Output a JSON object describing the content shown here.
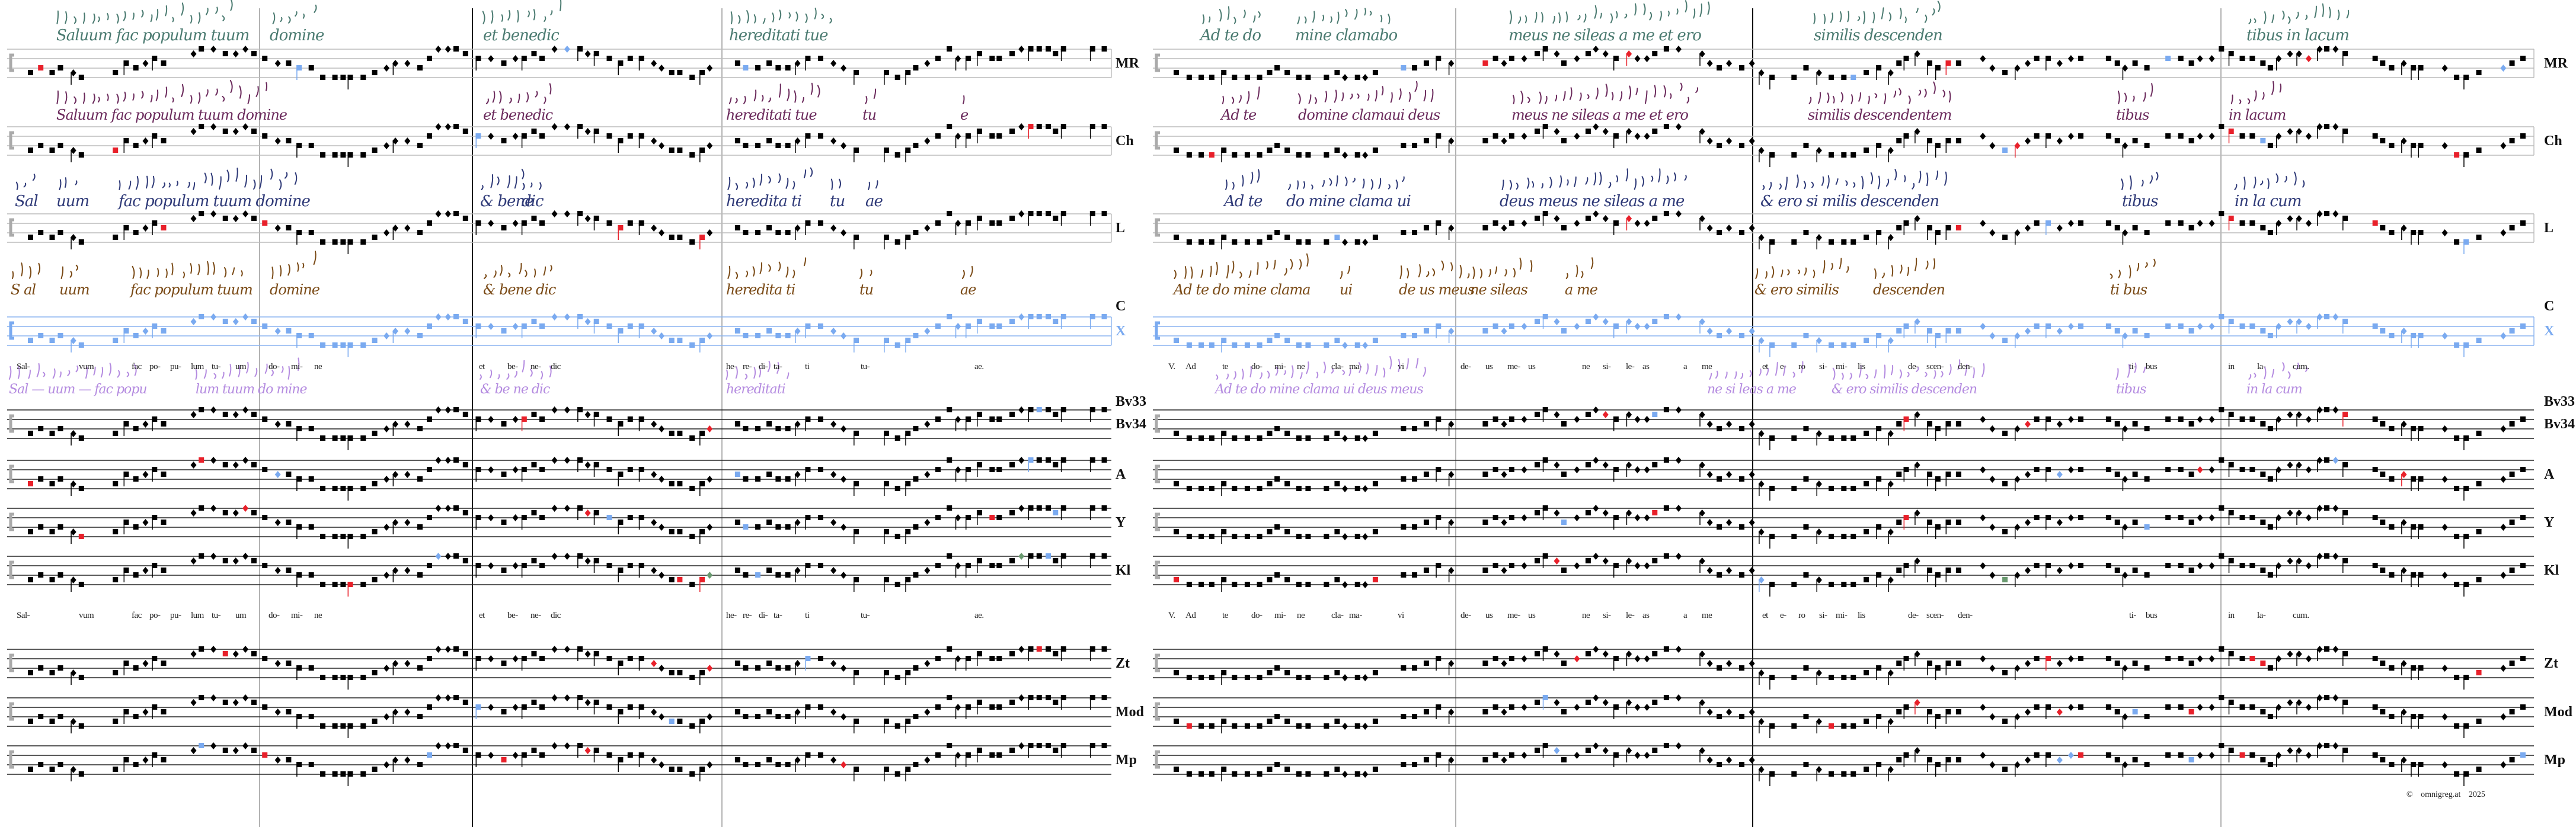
{
  "rows": [
    {
      "id": "MR",
      "label": "MR",
      "kind": "staff-grey"
    },
    {
      "id": "Ch",
      "label": "Ch",
      "kind": "staff-grey"
    },
    {
      "id": "L",
      "label": "L",
      "kind": "staff-grey"
    },
    {
      "id": "C",
      "label": "C",
      "kind": "script-only"
    },
    {
      "id": "X",
      "label": "X",
      "kind": "staff-blue"
    },
    {
      "id": "Bv33",
      "label": "Bv33",
      "kind": "script-only"
    },
    {
      "id": "Bv34",
      "label": "Bv34",
      "kind": "staff-black"
    },
    {
      "id": "A",
      "label": "A",
      "kind": "staff-black"
    },
    {
      "id": "Y",
      "label": "Y",
      "kind": "staff-black"
    },
    {
      "id": "Kl",
      "label": "Kl",
      "kind": "staff-black"
    },
    {
      "id": "Zt",
      "label": "Zt",
      "kind": "staff-black"
    },
    {
      "id": "Mod",
      "label": "Mod",
      "kind": "staff-black"
    },
    {
      "id": "Mp",
      "label": "Mp",
      "kind": "staff-black"
    }
  ],
  "manuscripts": {
    "MR": {
      "color": "#4a7a70",
      "left": [
        "Saluum fac populum tuum",
        "domine",
        "et benedic",
        "hereditati tue"
      ],
      "right": [
        "Ad te do",
        "mine clamabo",
        "meus ne sileas a me et ero",
        "similis descenden",
        "tibus in lacum"
      ]
    },
    "Ch": {
      "color": "#6b2a5c",
      "left": [
        "Saluum fac populum tuum domine",
        "et benedic",
        "hereditati tue",
        "tu",
        "e"
      ],
      "right": [
        "Ad te",
        "domine clamaui deus",
        "meus ne sileas a me et ero",
        "similis descendentem",
        "tibus",
        "in lacum"
      ]
    },
    "L": {
      "color": "#2f3a78",
      "left": [
        "Sal",
        "uum",
        "fac populum tuum domine",
        "& bene",
        "dic",
        "heredita ti",
        "tu",
        "ae"
      ],
      "right": [
        "Ad te",
        "do mine clama ui",
        "deus meus ne sileas a me",
        "& ero si milis descenden",
        "tibus",
        "in la cum"
      ]
    },
    "C": {
      "color": "#7a4a16",
      "left": [
        "S al",
        "uum",
        "fac populum tuum",
        "domine",
        "& bene dic",
        "heredita ti",
        "tu",
        "ae"
      ],
      "right": [
        "Ad te do mine clama",
        "ui",
        "de us meus",
        "ne sileas",
        "a me",
        "& ero similis",
        "descenden",
        "ti bus"
      ]
    },
    "Bv33": {
      "color": "#b48be0",
      "left": [
        "Sal — uum — fac popu",
        "lum tuum do mine",
        "& be ne dic",
        "hereditati"
      ],
      "right": [
        "Ad te do mine clama ui deus meus",
        "ne si leas a me",
        "& ero similis descenden",
        "tibus",
        "in la cum"
      ]
    }
  },
  "lyrics": {
    "left": [
      "Sal-",
      "vum",
      "fac",
      "po-",
      "pu-",
      "lum",
      "tu-",
      "um",
      "do-",
      "mi-",
      "ne",
      "et",
      "be-",
      "ne-",
      "dic",
      "he-",
      "re-",
      "di-",
      "ta-",
      "ti",
      "tu-",
      "ae."
    ],
    "right": [
      "V.",
      "Ad",
      "te",
      "do-",
      "mi-",
      "ne",
      "cla-",
      "ma-",
      "vi",
      "de-",
      "us",
      "me-",
      "us",
      "ne",
      "si-",
      "le-",
      "as",
      "a",
      "me",
      "et",
      "e-",
      "ro",
      "si-",
      "mi-",
      "lis",
      "de-",
      "scen-",
      "den-",
      "ti-",
      "bus",
      "in",
      "la-",
      "cum."
    ]
  },
  "copyright": {
    "symbol": "©",
    "site": "omnigreg.at",
    "year": "2025"
  },
  "colors": {
    "variant_red": "#e8202a",
    "variant_blue": "#7aaaf0",
    "variant_green": "#6a9a70",
    "note": "#000000",
    "staff_grey": "#bbbbbb",
    "staff_blue": "#8ab4f0",
    "staff_black": "#222222"
  }
}
